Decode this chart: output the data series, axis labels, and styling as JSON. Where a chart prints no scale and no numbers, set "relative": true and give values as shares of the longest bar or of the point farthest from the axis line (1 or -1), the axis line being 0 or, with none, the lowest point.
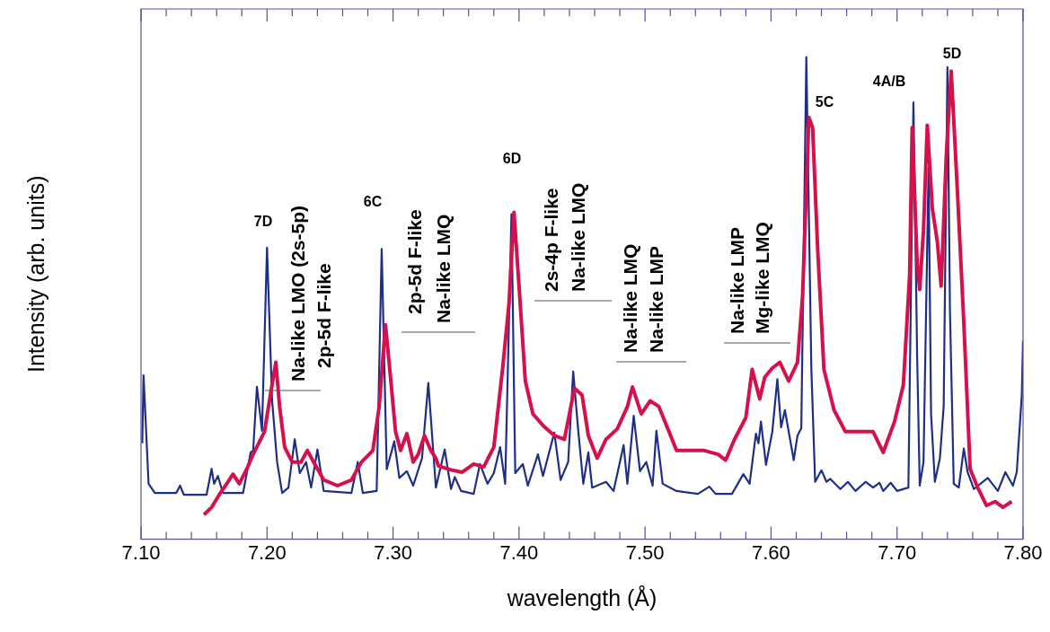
{
  "chart_data": {
    "type": "line",
    "relative": true,
    "xlabel": "wavelength (Å)",
    "ylabel": "Intensity (arb. units)",
    "xlim": [
      7.1,
      7.8
    ],
    "xticks": [
      {
        "value": 7.1,
        "label": "7.10"
      },
      {
        "value": 7.12,
        "label": null
      },
      {
        "value": 7.14,
        "label": null
      },
      {
        "value": 7.16,
        "label": null
      },
      {
        "value": 7.18,
        "label": null
      },
      {
        "value": 7.2,
        "label": "7.20"
      },
      {
        "value": 7.22,
        "label": null
      },
      {
        "value": 7.24,
        "label": null
      },
      {
        "value": 7.26,
        "label": null
      },
      {
        "value": 7.28,
        "label": null
      },
      {
        "value": 7.3,
        "label": "7.30"
      },
      {
        "value": 7.32,
        "label": null
      },
      {
        "value": 7.34,
        "label": null
      },
      {
        "value": 7.36,
        "label": null
      },
      {
        "value": 7.38,
        "label": null
      },
      {
        "value": 7.4,
        "label": "7.40"
      },
      {
        "value": 7.42,
        "label": null
      },
      {
        "value": 7.44,
        "label": null
      },
      {
        "value": 7.46,
        "label": null
      },
      {
        "value": 7.48,
        "label": null
      },
      {
        "value": 7.5,
        "label": "7.50"
      },
      {
        "value": 7.52,
        "label": null
      },
      {
        "value": 7.54,
        "label": null
      },
      {
        "value": 7.56,
        "label": null
      },
      {
        "value": 7.58,
        "label": null
      },
      {
        "value": 7.6,
        "label": "7.60"
      },
      {
        "value": 7.62,
        "label": null
      },
      {
        "value": 7.64,
        "label": null
      },
      {
        "value": 7.66,
        "label": null
      },
      {
        "value": 7.68,
        "label": null
      },
      {
        "value": 7.7,
        "label": "7.70"
      },
      {
        "value": 7.72,
        "label": null
      },
      {
        "value": 7.74,
        "label": null
      },
      {
        "value": 7.76,
        "label": null
      },
      {
        "value": 7.78,
        "label": null
      },
      {
        "value": 7.8,
        "label": "7.80"
      }
    ],
    "grid": false,
    "legend": false,
    "marker": "none",
    "line_style": "solid",
    "series": [
      {
        "color": "#d6104a",
        "x": [
          7.15,
          7.156,
          7.162,
          7.167,
          7.173,
          7.178,
          7.184,
          7.189,
          7.198,
          7.203,
          7.207,
          7.21,
          7.214,
          7.22,
          7.227,
          7.232,
          7.237,
          7.245,
          7.256,
          7.267,
          7.275,
          7.284,
          7.289,
          7.294,
          7.298,
          7.302,
          7.306,
          7.311,
          7.316,
          7.32,
          7.325,
          7.33,
          7.334,
          7.336,
          7.347,
          7.355,
          7.364,
          7.372,
          7.38,
          7.387,
          7.392,
          7.396,
          7.4,
          7.405,
          7.411,
          7.419,
          7.428,
          7.436,
          7.444,
          7.45,
          7.455,
          7.462,
          7.469,
          7.478,
          7.486,
          7.49,
          7.497,
          7.504,
          7.511,
          7.519,
          7.525,
          7.536,
          7.547,
          7.558,
          7.564,
          7.571,
          7.58,
          7.585,
          7.591,
          7.595,
          7.601,
          7.607,
          7.614,
          7.621,
          7.625,
          7.63,
          7.633,
          7.637,
          7.642,
          7.65,
          7.659,
          7.67,
          7.681,
          7.689,
          7.698,
          7.705,
          7.71,
          7.712,
          7.716,
          7.718,
          7.721,
          7.724,
          7.728,
          7.732,
          7.735,
          7.739,
          7.743,
          7.748,
          7.753,
          7.758,
          7.764,
          7.771,
          7.778,
          7.784,
          7.791
        ],
        "values": [
          0.051,
          0.066,
          0.092,
          0.111,
          0.135,
          0.115,
          0.146,
          0.176,
          0.223,
          0.305,
          0.367,
          0.275,
          0.191,
          0.16,
          0.16,
          0.184,
          0.16,
          0.123,
          0.111,
          0.123,
          0.16,
          0.184,
          0.275,
          0.445,
          0.336,
          0.223,
          0.184,
          0.219,
          0.16,
          0.176,
          0.215,
          0.184,
          0.168,
          0.152,
          0.143,
          0.139,
          0.156,
          0.15,
          0.191,
          0.355,
          0.488,
          0.678,
          0.525,
          0.328,
          0.26,
          0.236,
          0.215,
          0.207,
          0.313,
          0.299,
          0.215,
          0.168,
          0.207,
          0.229,
          0.275,
          0.316,
          0.26,
          0.287,
          0.275,
          0.223,
          0.184,
          0.184,
          0.184,
          0.176,
          0.164,
          0.207,
          0.252,
          0.352,
          0.291,
          0.336,
          0.355,
          0.367,
          0.328,
          0.367,
          0.504,
          0.875,
          0.854,
          0.602,
          0.352,
          0.268,
          0.223,
          0.223,
          0.223,
          0.18,
          0.244,
          0.32,
          0.549,
          0.854,
          0.572,
          0.518,
          0.641,
          0.859,
          0.686,
          0.617,
          0.525,
          0.791,
          0.971,
          0.717,
          0.449,
          0.146,
          0.107,
          0.07,
          0.078,
          0.066,
          0.078
        ]
      },
      {
        "color": "#1f2f86",
        "x": [
          7.101,
          7.102,
          7.106,
          7.111,
          7.128,
          7.131,
          7.134,
          7.152,
          7.156,
          7.158,
          7.161,
          7.165,
          7.181,
          7.187,
          7.189,
          7.192,
          7.196,
          7.2,
          7.204,
          7.208,
          7.212,
          7.217,
          7.222,
          7.226,
          7.231,
          7.235,
          7.24,
          7.245,
          7.267,
          7.272,
          7.276,
          7.287,
          7.291,
          7.295,
          7.301,
          7.305,
          7.311,
          7.316,
          7.323,
          7.328,
          7.334,
          7.341,
          7.346,
          7.349,
          7.354,
          7.364,
          7.369,
          7.375,
          7.38,
          7.385,
          7.389,
          7.394,
          7.397,
          7.403,
          7.407,
          7.415,
          7.419,
          7.428,
          7.433,
          7.439,
          7.443,
          7.447,
          7.451,
          7.455,
          7.458,
          7.469,
          7.475,
          7.483,
          7.486,
          7.491,
          7.496,
          7.501,
          7.506,
          7.509,
          7.514,
          7.525,
          7.542,
          7.551,
          7.556,
          7.569,
          7.578,
          7.583,
          7.588,
          7.59,
          7.592,
          7.596,
          7.601,
          7.605,
          7.608,
          7.611,
          7.618,
          7.621,
          7.624,
          7.628,
          7.632,
          7.635,
          7.64,
          7.644,
          7.647,
          7.655,
          7.661,
          7.667,
          7.675,
          7.681,
          7.686,
          7.689,
          7.695,
          7.7,
          7.709,
          7.713,
          7.716,
          7.718,
          7.721,
          7.725,
          7.727,
          7.73,
          7.734,
          7.737,
          7.74,
          7.742,
          7.745,
          7.749,
          7.753,
          7.756,
          7.761,
          7.772,
          7.78,
          7.786,
          7.792,
          7.795,
          7.799,
          7.8
        ],
        "values": [
          0.199,
          0.34,
          0.115,
          0.096,
          0.096,
          0.111,
          0.092,
          0.092,
          0.146,
          0.115,
          0.131,
          0.096,
          0.096,
          0.18,
          0.184,
          0.316,
          0.225,
          0.605,
          0.289,
          0.16,
          0.096,
          0.107,
          0.207,
          0.137,
          0.16,
          0.107,
          0.186,
          0.1,
          0.096,
          0.16,
          0.096,
          0.1,
          0.602,
          0.145,
          0.203,
          0.127,
          0.141,
          0.111,
          0.168,
          0.324,
          0.107,
          0.186,
          0.104,
          0.129,
          0.1,
          0.094,
          0.156,
          0.115,
          0.137,
          0.191,
          0.115,
          0.674,
          0.137,
          0.156,
          0.111,
          0.176,
          0.131,
          0.221,
          0.123,
          0.16,
          0.348,
          0.225,
          0.115,
          0.18,
          0.107,
          0.119,
          0.1,
          0.195,
          0.115,
          0.256,
          0.141,
          0.16,
          0.111,
          0.225,
          0.115,
          0.1,
          0.094,
          0.109,
          0.094,
          0.094,
          0.135,
          0.115,
          0.219,
          0.199,
          0.244,
          0.154,
          0.223,
          0.332,
          0.232,
          0.268,
          0.164,
          0.215,
          0.23,
          1.0,
          0.352,
          0.119,
          0.143,
          0.119,
          0.125,
          0.104,
          0.119,
          0.1,
          0.119,
          0.107,
          0.117,
          0.1,
          0.117,
          0.1,
          0.107,
          0.906,
          0.373,
          0.111,
          0.16,
          0.77,
          0.26,
          0.119,
          0.168,
          0.275,
          0.979,
          0.473,
          0.115,
          0.107,
          0.188,
          0.139,
          0.104,
          0.127,
          0.1,
          0.139,
          0.111,
          0.139,
          0.299,
          0.412
        ]
      }
    ],
    "annotations": [
      "7D",
      "6C",
      "6D",
      "5C",
      "4A/B",
      "5D",
      "Na-like LMO (2s-5p)",
      "2p-5d F-like",
      "2p-5d F-like",
      "Na-like LMQ",
      "2s-4p F-like",
      "Na-like LMQ",
      "Na-like LMQ",
      "Na-like LMP",
      "Na-like LMP",
      "Mg-like LMQ"
    ]
  }
}
